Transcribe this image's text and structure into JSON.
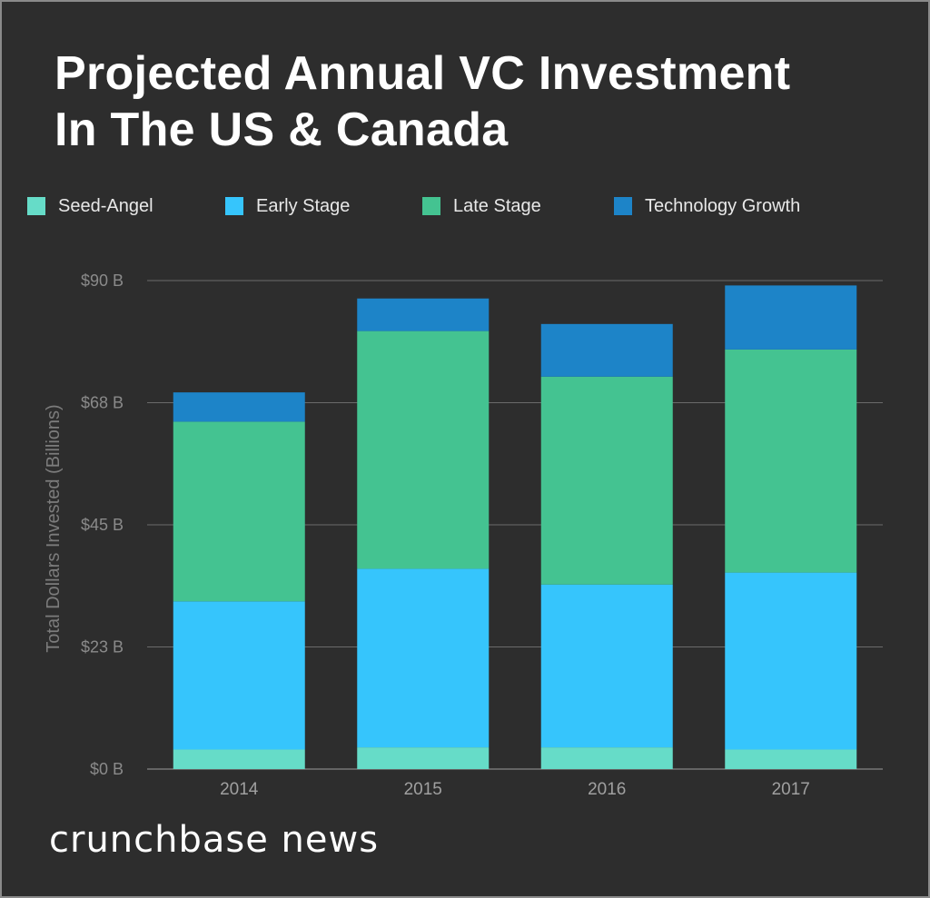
{
  "header": {
    "title_line1": "Projected Annual VC Investment",
    "title_line2": "In The US & Canada"
  },
  "footer": {
    "brand": "crunchbase news"
  },
  "chart_data": {
    "type": "bar",
    "stacked": true,
    "title": "Projected Annual VC Investment In The US & Canada",
    "xlabel": "",
    "ylabel": "Total Dollars Invested (Billions)",
    "ylim": [
      0,
      90
    ],
    "y_ticks": [
      {
        "value": 0,
        "label": "$0 B"
      },
      {
        "value": 22.5,
        "label": "$23 B"
      },
      {
        "value": 45,
        "label": "$45 B"
      },
      {
        "value": 67.5,
        "label": "$68 B"
      },
      {
        "value": 90,
        "label": "$90 B"
      }
    ],
    "grid": true,
    "legend_position": "top",
    "categories": [
      "2014",
      "2015",
      "2016",
      "2017"
    ],
    "series": [
      {
        "name": "Seed-Angel",
        "color": "#66dcc8",
        "values": [
          3.6,
          4.0,
          4.0,
          3.6
        ]
      },
      {
        "name": "Early Stage",
        "color": "#36c5fc",
        "values": [
          27.3,
          32.9,
          30.0,
          32.6
        ]
      },
      {
        "name": "Late Stage",
        "color": "#44c391",
        "values": [
          33.1,
          43.8,
          38.3,
          41.1
        ]
      },
      {
        "name": "Technology Growth",
        "color": "#1d84c8",
        "values": [
          5.4,
          6.0,
          9.7,
          11.8
        ]
      }
    ]
  }
}
